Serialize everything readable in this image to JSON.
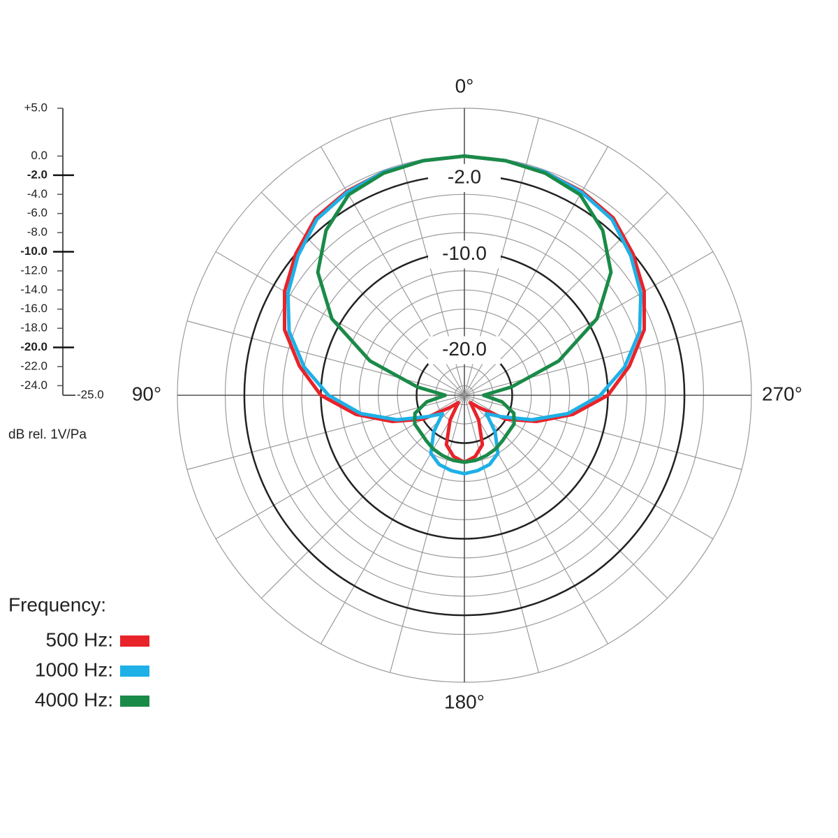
{
  "chart_data": {
    "type": "polar",
    "rlim": [
      -25,
      5
    ],
    "rticks": [
      {
        "value": 5,
        "label": "+5.0"
      },
      {
        "value": 0,
        "label": "0.0"
      },
      {
        "value": -2,
        "label": "-2.0"
      },
      {
        "value": -4,
        "label": "-4.0"
      },
      {
        "value": -6,
        "label": "-6.0"
      },
      {
        "value": -8,
        "label": "-8.0"
      },
      {
        "value": -10,
        "label": "-10.0"
      },
      {
        "value": -12,
        "label": "-12.0"
      },
      {
        "value": -14,
        "label": "-14.0"
      },
      {
        "value": -16,
        "label": "-16.0"
      },
      {
        "value": -18,
        "label": "-18.0"
      },
      {
        "value": -20,
        "label": "-20.0"
      },
      {
        "value": -22,
        "label": "-22.0"
      },
      {
        "value": -24,
        "label": "-24.0"
      },
      {
        "value": -25,
        "label": "-25.0"
      }
    ],
    "major_rings": [
      {
        "value": -2,
        "label": "-2.0"
      },
      {
        "value": -10,
        "label": "-10.0"
      },
      {
        "value": -20,
        "label": "-20.0"
      }
    ],
    "r_axis_label": "dB rel. 1V/Pa",
    "theta_direction": "counterclockwise",
    "theta_zero": "top",
    "thetaticks": [
      {
        "value": 0,
        "label": "0°"
      },
      {
        "value": 90,
        "label": "90°"
      },
      {
        "value": 180,
        "label": "180°"
      },
      {
        "value": 270,
        "label": "270°"
      }
    ],
    "thetagrid": [
      0,
      15,
      30,
      45,
      60,
      75,
      90,
      105,
      120,
      135,
      150,
      165,
      180,
      195,
      210,
      225,
      240,
      255,
      270,
      285,
      300,
      315,
      330,
      345
    ],
    "theta": [
      0,
      10,
      20,
      30,
      40,
      50,
      60,
      70,
      80,
      90,
      100,
      110,
      120,
      130,
      140,
      150,
      160,
      170,
      180,
      190,
      200,
      210,
      220,
      230,
      240,
      250,
      260,
      270,
      280,
      290,
      300,
      310,
      320,
      330,
      340,
      350
    ],
    "legend_title": "Frequency:",
    "legend": "lower left",
    "series": [
      {
        "name": "500 Hz:",
        "color": "#e8232a",
        "values": [
          0,
          -0.1,
          -0.2,
          -0.4,
          -0.8,
          -2,
          -3.3,
          -5,
          -7.5,
          -10,
          -13.5,
          -17,
          -20,
          -23,
          -24,
          -22,
          -19.5,
          -18.5,
          -18,
          -18.5,
          -19.5,
          -22,
          -24,
          -23,
          -20,
          -17,
          -13.5,
          -10,
          -7.5,
          -5,
          -3.3,
          -2,
          -0.8,
          -0.4,
          -0.2,
          -0.1
        ]
      },
      {
        "name": "1000 Hz:",
        "color": "#1eb0e6",
        "values": [
          0,
          -0.1,
          -0.2,
          -0.5,
          -1,
          -2.3,
          -3.7,
          -5.5,
          -8,
          -10.8,
          -14,
          -17.5,
          -20.5,
          -22,
          -20,
          -18,
          -17.3,
          -17,
          -16.8,
          -17,
          -17.3,
          -18,
          -20,
          -22,
          -20.5,
          -17.5,
          -14,
          -10.8,
          -8,
          -5.5,
          -3.7,
          -2.3,
          -1,
          -0.5,
          -0.2,
          -0.1
        ]
      },
      {
        "name": "4000 Hz:",
        "color": "#1a8a48",
        "values": [
          0,
          -0.1,
          -0.3,
          -0.8,
          -2.5,
          -5,
          -9,
          -14.5,
          -20,
          -23,
          -21,
          -19.5,
          -19,
          -19,
          -18.8,
          -18.5,
          -18.3,
          -18.1,
          -18,
          -18.1,
          -18.3,
          -18.5,
          -18.8,
          -19,
          -19,
          -19.5,
          -21,
          -23,
          -20,
          -14.5,
          -9,
          -5,
          -2.5,
          -0.8,
          -0.3,
          -0.1
        ]
      }
    ]
  }
}
